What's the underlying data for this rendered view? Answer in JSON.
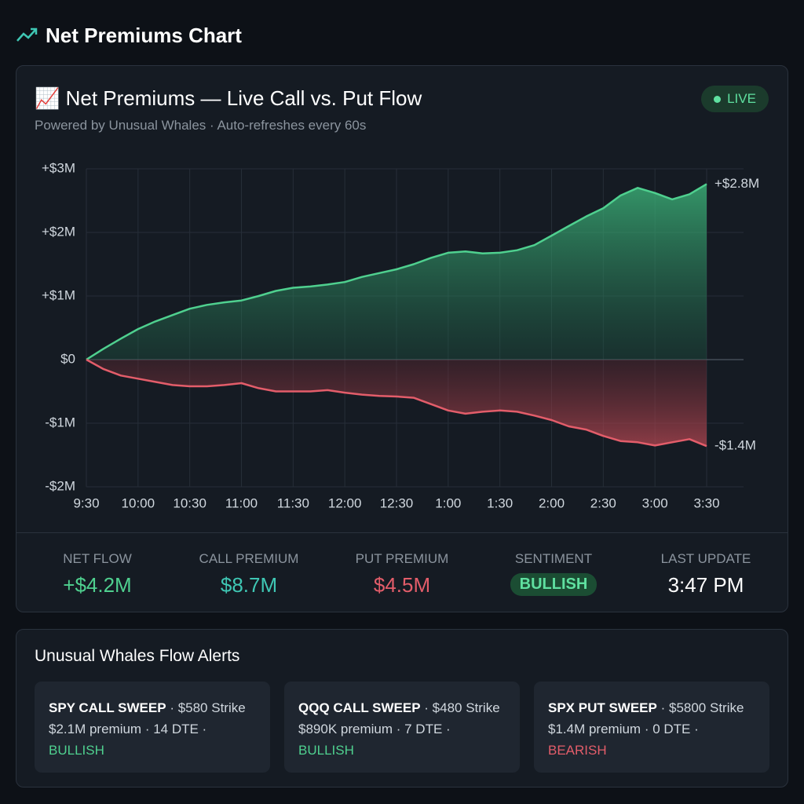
{
  "header": {
    "title": "Net Premiums Chart"
  },
  "card": {
    "title": "📈 Net Premiums — Live Call vs. Put Flow",
    "subtitle": "Powered by Unusual Whales · Auto-refreshes every 60s",
    "badge": "LIVE"
  },
  "chart_data": {
    "type": "area",
    "categories": [
      "9:30",
      null,
      null,
      "10:00",
      null,
      null,
      "10:30",
      null,
      null,
      "11:00",
      null,
      null,
      "11:30",
      null,
      null,
      "12:00",
      null,
      null,
      "12:30",
      null,
      null,
      "1:00",
      null,
      null,
      "1:30",
      null,
      null,
      "2:00",
      null,
      null,
      "2:30",
      null,
      null,
      "3:00",
      null,
      null,
      "3:30"
    ],
    "series": [
      {
        "color": "#4fd08f",
        "values": [
          0,
          0.17,
          0.33,
          0.48,
          0.6,
          0.7,
          0.8,
          0.86,
          0.9,
          0.93,
          1.0,
          1.08,
          1.13,
          1.15,
          1.18,
          1.22,
          1.3,
          1.36,
          1.42,
          1.5,
          1.6,
          1.68,
          1.7,
          1.67,
          1.68,
          1.72,
          1.8,
          1.95,
          2.1,
          2.25,
          2.38,
          2.58,
          2.7,
          2.62,
          2.52,
          2.6,
          2.76
        ],
        "value_labels": [
          null,
          null,
          null,
          null,
          null,
          null,
          null,
          null,
          null,
          null,
          null,
          null,
          null,
          null,
          null,
          null,
          null,
          null,
          null,
          null,
          null,
          null,
          null,
          null,
          null,
          null,
          null,
          null,
          null,
          null,
          null,
          null,
          null,
          null,
          null,
          null,
          "+$2.8M"
        ]
      },
      {
        "color": "#e35d6a",
        "values": [
          0,
          -0.15,
          -0.25,
          -0.3,
          -0.35,
          -0.4,
          -0.42,
          -0.42,
          -0.4,
          -0.37,
          -0.45,
          -0.5,
          -0.5,
          -0.5,
          -0.48,
          -0.52,
          -0.55,
          -0.57,
          -0.58,
          -0.6,
          -0.7,
          -0.8,
          -0.85,
          -0.82,
          -0.8,
          -0.82,
          -0.88,
          -0.95,
          -1.05,
          -1.1,
          -1.2,
          -1.28,
          -1.3,
          -1.35,
          -1.3,
          -1.25,
          -1.36
        ],
        "value_labels": [
          null,
          null,
          null,
          null,
          null,
          null,
          null,
          null,
          null,
          null,
          null,
          null,
          null,
          null,
          null,
          null,
          null,
          null,
          null,
          null,
          null,
          null,
          null,
          null,
          null,
          null,
          null,
          null,
          null,
          null,
          null,
          null,
          null,
          null,
          null,
          null,
          "-$1.4M"
        ]
      }
    ],
    "ylim": [
      -2,
      3
    ],
    "yticks": [
      {
        "value": 3,
        "label": "+$3M"
      },
      {
        "value": 2,
        "label": "+$2M"
      },
      {
        "value": 1,
        "label": "+$1M"
      },
      {
        "value": 0,
        "label": "$0"
      },
      {
        "value": -1,
        "label": "-$1M"
      },
      {
        "value": -2,
        "label": "-$2M"
      }
    ],
    "grid": true
  },
  "stats": [
    {
      "label": "NET FLOW",
      "value": "+$4.2M",
      "color": "#4fd08f"
    },
    {
      "label": "CALL PREMIUM",
      "value": "$8.7M",
      "color": "#3fc7b4"
    },
    {
      "label": "PUT PREMIUM",
      "value": "$4.5M",
      "color": "#e35d6a"
    },
    {
      "label": "SENTIMENT",
      "value": "BULLISH",
      "color": "#5fe0a0"
    },
    {
      "label": "LAST UPDATE",
      "value": "3:47 PM",
      "color": "#ffffff"
    }
  ],
  "alerts": {
    "title": "Unusual Whales Flow Alerts",
    "items": [
      {
        "headline": "SPY CALL SWEEP",
        "strike": "· $580 Strike",
        "detail": "$2.1M premium · 14 DTE ·",
        "sentiment": "BULLISH",
        "color": "#4fd08f"
      },
      {
        "headline": "QQQ CALL SWEEP",
        "strike": "· $480 Strike",
        "detail": "$890K premium · 7 DTE ·",
        "sentiment": "BULLISH",
        "color": "#4fd08f"
      },
      {
        "headline": "SPX PUT SWEEP",
        "strike": "· $5800 Strike",
        "detail": "$1.4M premium · 0 DTE ·",
        "sentiment": "BEARISH",
        "color": "#e35d6a"
      }
    ]
  }
}
